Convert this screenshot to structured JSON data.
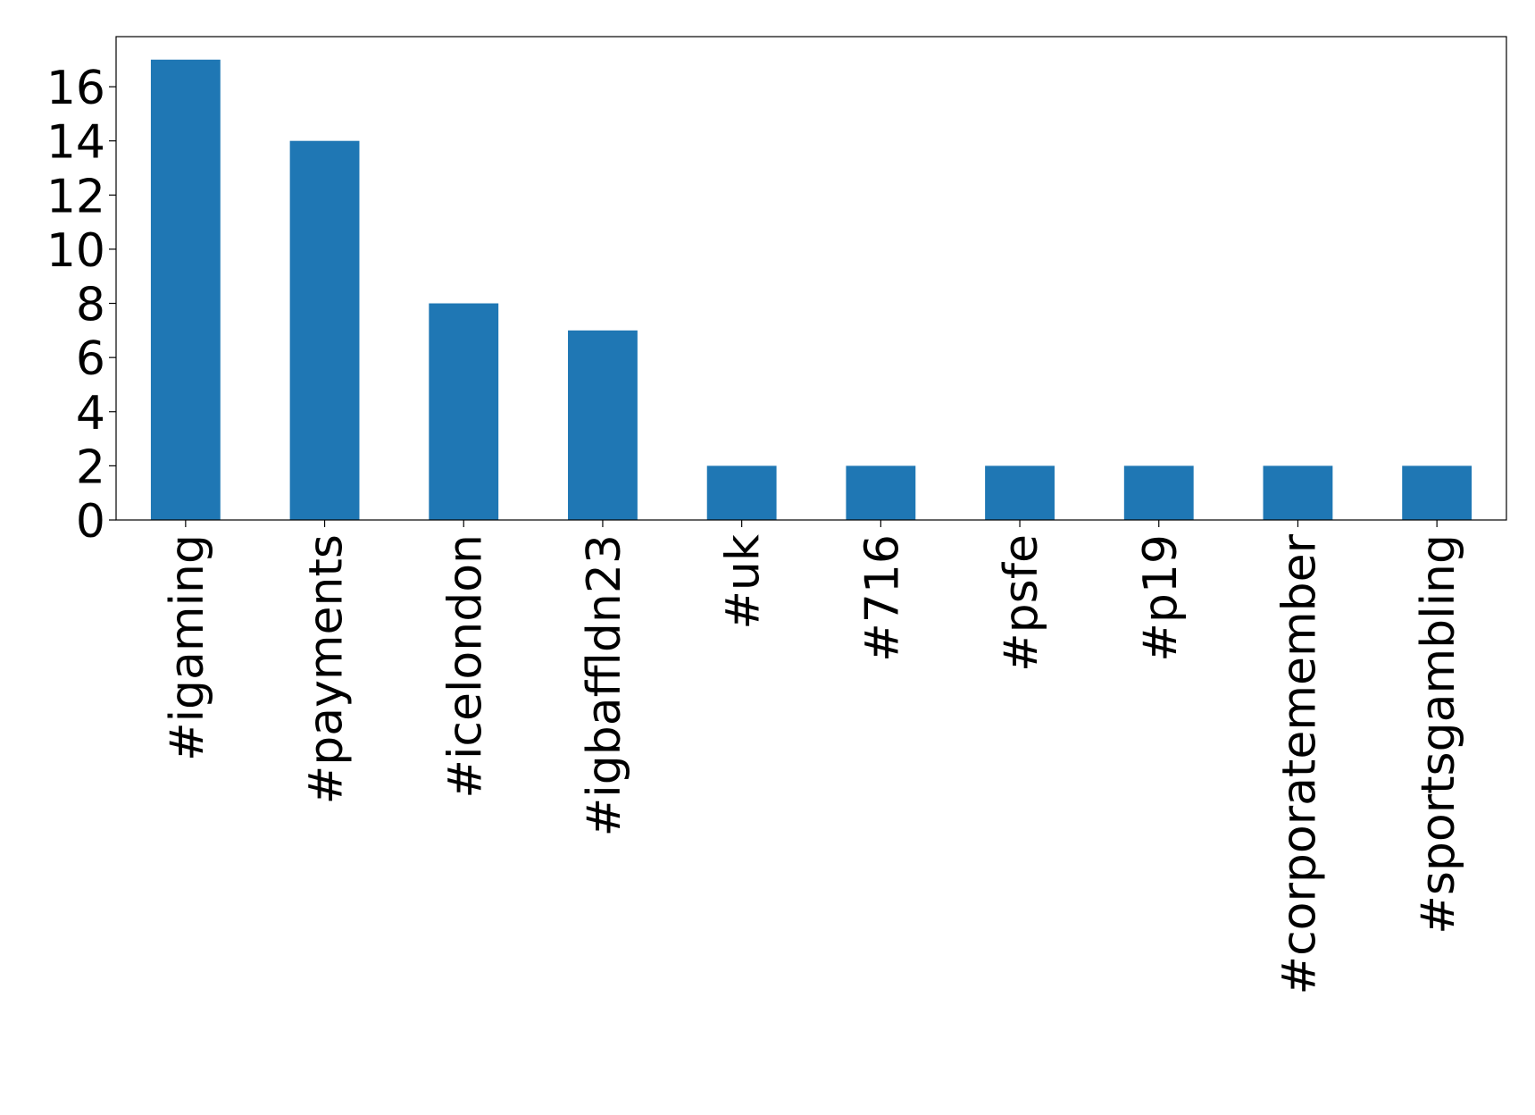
{
  "chart_data": {
    "type": "bar",
    "categories": [
      "#igaming",
      "#payments",
      "#icelondon",
      "#igbaffldn23",
      "#uk",
      "#716",
      "#psfe",
      "#p19",
      "#corporatemember",
      "#sportsgambling"
    ],
    "values": [
      17,
      14,
      8,
      7,
      2,
      2,
      2,
      2,
      2,
      2
    ],
    "color": "#1f77b4",
    "ylim": [
      0,
      17.85
    ],
    "yticks": [
      0,
      2,
      4,
      6,
      8,
      10,
      12,
      14,
      16
    ],
    "grid": false
  }
}
